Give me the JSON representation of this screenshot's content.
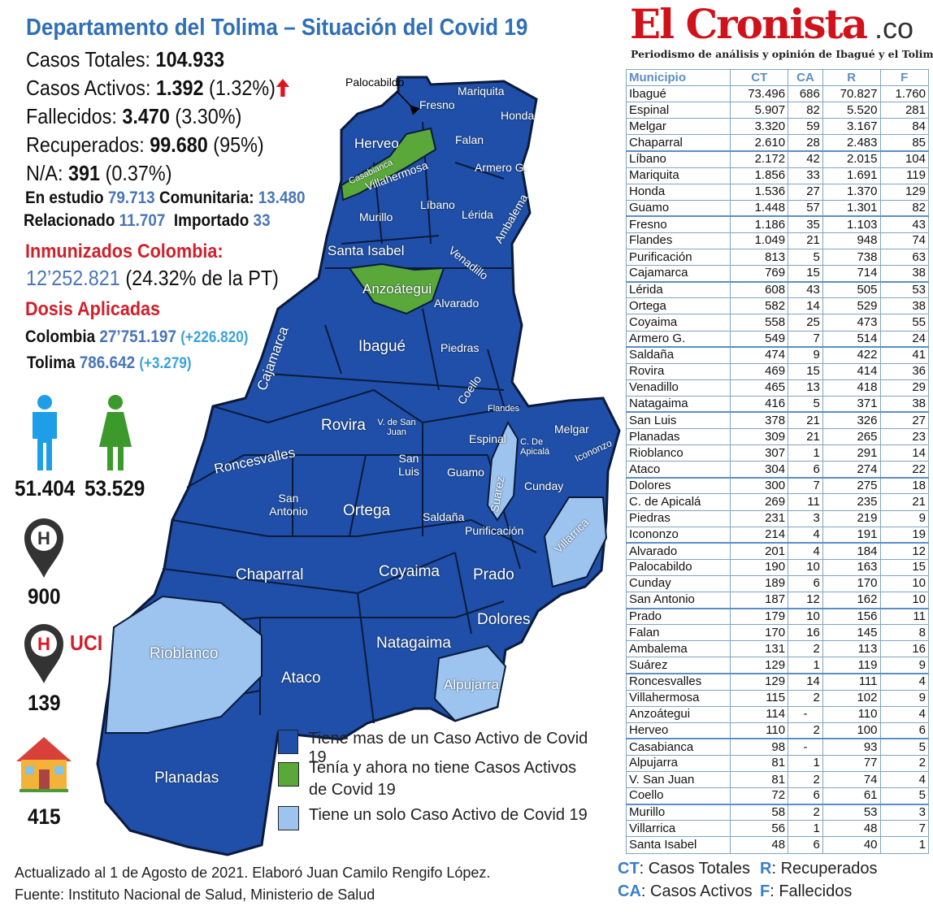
{
  "header": {
    "title": "Departamento del Tolima – Situación del Covid 19"
  },
  "stats": {
    "total_label": "Casos Totales: ",
    "total": "104.933",
    "active_label": "Casos Activos: ",
    "active": "1.392",
    "active_pct": " (1.32%)",
    "active_trend": "up-arrow-icon",
    "deaths_label": "Fallecidos: ",
    "deaths": "3.470",
    "deaths_pct": " (3.30%)",
    "recovered_label": "Recuperados: ",
    "recovered": "99.680",
    "recovered_pct": " (95%)",
    "na_label": "N/A: ",
    "na": "391",
    "na_pct": " (0.37%)",
    "study_label": "En estudio ",
    "study": "79.713",
    "community_label": "Comunitaria: ",
    "community": "13.480",
    "related_label": "Relacionado ",
    "related": "11.707",
    "imported_label": "Importado ",
    "imported": "33"
  },
  "vaccination": {
    "immunized_title": "Inmunizados Colombia:",
    "immunized": "12’252.821",
    "immunized_pct": " (24.32% de la PT)",
    "doses_title": "Dosis Aplicadas",
    "colombia_label": "Colombia",
    "colombia": "27’751.197",
    "colombia_delta": "(+226.820)",
    "tolima_label": "Tolima",
    "tolima": "786.642",
    "tolima_delta": "(+3.279)"
  },
  "demographics": {
    "male": "51.404",
    "female": "53.529",
    "hospital": "900",
    "uci_label": "UCI",
    "uci": "139",
    "home": "415"
  },
  "colors": {
    "title": "#2f6fb6",
    "many_active": "#1f4fa8",
    "none_active": "#5aa83a",
    "one_active": "#9cc4ee",
    "highlight_red": "#d11f2a",
    "brand_red": "#d0121b"
  },
  "map": {
    "labels": [
      "Palocabildo",
      "Mariquita",
      "Fresno",
      "Honda",
      "Herveo",
      "Falan",
      "Armero G.",
      "Casabianca",
      "Villahermosa",
      "Líbano",
      "Lérida",
      "Ambalema",
      "Murillo",
      "Santa Isabel",
      "Venadillo",
      "Anzoátegui",
      "Alvarado",
      "Cajamarca",
      "Ibagué",
      "Piedras",
      "Coello",
      "Flandes",
      "Melgar",
      "Rovira",
      "V. de San Juan",
      "Espinal",
      "C. De Apicalá",
      "Icononzo",
      "Roncesvalles",
      "San Luis",
      "Guamo",
      "Suárez",
      "Cunday",
      "San Antonio",
      "Ortega",
      "Saldaña",
      "Purificación",
      "Villarrica",
      "Chaparral",
      "Coyaima",
      "Prado",
      "Dolores",
      "Rioblanco",
      "Natagaima",
      "Ataco",
      "Alpujarra",
      "Planadas"
    ]
  },
  "legend": [
    {
      "label": "Tiene mas de un Caso Activo de Covid 19",
      "color": "#1f4fa8"
    },
    {
      "label": "Tenía y ahora no tiene Casos Activos de Covid 19",
      "color": "#5aa83a"
    },
    {
      "label": "Tiene un solo Caso Activo de Covid 19",
      "color": "#9cc4ee"
    }
  ],
  "footer": {
    "line1": "Actualizado al 1 de Agosto de 2021. Elaboró Juan Camilo Rengifo López.",
    "line2": "Fuente: Instituto Nacional de Salud, Ministerio de Salud"
  },
  "brand": {
    "name": "El Cronista",
    "tld": ".co",
    "tagline": "Periodismo de análisis y opinión de Ibagué y el Tolima"
  },
  "table": {
    "headers": [
      "Municipio",
      "CT",
      "CA",
      "R",
      "F"
    ],
    "rows": [
      [
        "Ibagué",
        "73.496",
        "686",
        "70.827",
        "1.760"
      ],
      [
        "Espinal",
        "5.907",
        "82",
        "5.520",
        "281"
      ],
      [
        "Melgar",
        "3.320",
        "59",
        "3.167",
        "84"
      ],
      [
        "Chaparral",
        "2.610",
        "28",
        "2.483",
        "85"
      ],
      [
        "Líbano",
        "2.172",
        "42",
        "2.015",
        "104"
      ],
      [
        "Mariquita",
        "1.856",
        "33",
        "1.691",
        "119"
      ],
      [
        "Honda",
        "1.536",
        "27",
        "1.370",
        "129"
      ],
      [
        "Guamo",
        "1.448",
        "57",
        "1.301",
        "82"
      ],
      [
        "Fresno",
        "1.186",
        "35",
        "1.103",
        "43"
      ],
      [
        "Flandes",
        "1.049",
        "21",
        "948",
        "74"
      ],
      [
        "Purificación",
        "813",
        "5",
        "738",
        "63"
      ],
      [
        "Cajamarca",
        "769",
        "15",
        "714",
        "38"
      ],
      [
        "Lérida",
        "608",
        "43",
        "505",
        "53"
      ],
      [
        "Ortega",
        "582",
        "14",
        "529",
        "38"
      ],
      [
        "Coyaima",
        "558",
        "25",
        "473",
        "55"
      ],
      [
        "Armero G.",
        "549",
        "7",
        "514",
        "24"
      ],
      [
        "Saldaña",
        "474",
        "9",
        "422",
        "41"
      ],
      [
        "Rovira",
        "469",
        "15",
        "414",
        "36"
      ],
      [
        "Venadillo",
        "465",
        "13",
        "418",
        "29"
      ],
      [
        "Natagaima",
        "416",
        "5",
        "371",
        "38"
      ],
      [
        "San Luis",
        "378",
        "21",
        "326",
        "27"
      ],
      [
        "Planadas",
        "309",
        "21",
        "265",
        "23"
      ],
      [
        "Rioblanco",
        "307",
        "1",
        "291",
        "14"
      ],
      [
        "Ataco",
        "304",
        "6",
        "274",
        "22"
      ],
      [
        "Dolores",
        "300",
        "7",
        "275",
        "18"
      ],
      [
        "C. de Apicalá",
        "269",
        "11",
        "235",
        "21"
      ],
      [
        "Piedras",
        "231",
        "3",
        "219",
        "9"
      ],
      [
        "Icononzo",
        "214",
        "4",
        "191",
        "19"
      ],
      [
        "Alvarado",
        "201",
        "4",
        "184",
        "12"
      ],
      [
        "Palocabildo",
        "190",
        "10",
        "163",
        "15"
      ],
      [
        "Cunday",
        "189",
        "6",
        "170",
        "10"
      ],
      [
        "San Antonio",
        "187",
        "12",
        "162",
        "10"
      ],
      [
        "Prado",
        "179",
        "10",
        "156",
        "11"
      ],
      [
        "Falan",
        "170",
        "16",
        "145",
        "8"
      ],
      [
        "Ambalema",
        "131",
        "2",
        "113",
        "16"
      ],
      [
        "Suárez",
        "129",
        "1",
        "119",
        "9"
      ],
      [
        "Roncesvalles",
        "129",
        "14",
        "111",
        "4"
      ],
      [
        "Villahermosa",
        "115",
        "2",
        "102",
        "9"
      ],
      [
        "Anzoátegui",
        "114",
        "-",
        "110",
        "4"
      ],
      [
        "Herveo",
        "110",
        "2",
        "100",
        "6"
      ],
      [
        "Casabianca",
        "98",
        "-",
        "93",
        "5"
      ],
      [
        "Alpujarra",
        "81",
        "1",
        "77",
        "2"
      ],
      [
        "V. San Juan",
        "81",
        "2",
        "74",
        "4"
      ],
      [
        "Coello",
        "72",
        "6",
        "61",
        "5"
      ],
      [
        "Murillo",
        "58",
        "2",
        "53",
        "3"
      ],
      [
        "Villarrica",
        "56",
        "1",
        "48",
        "7"
      ],
      [
        "Santa Isabel",
        "48",
        "6",
        "40",
        "1"
      ]
    ]
  },
  "key": {
    "ct": "CT",
    "ct_label": ": Casos Totales",
    "ca": "CA",
    "ca_label": ": Casos Activos",
    "r": "R",
    "r_label": ": Recuperados",
    "f": "F",
    "f_label": ": Fallecidos"
  }
}
